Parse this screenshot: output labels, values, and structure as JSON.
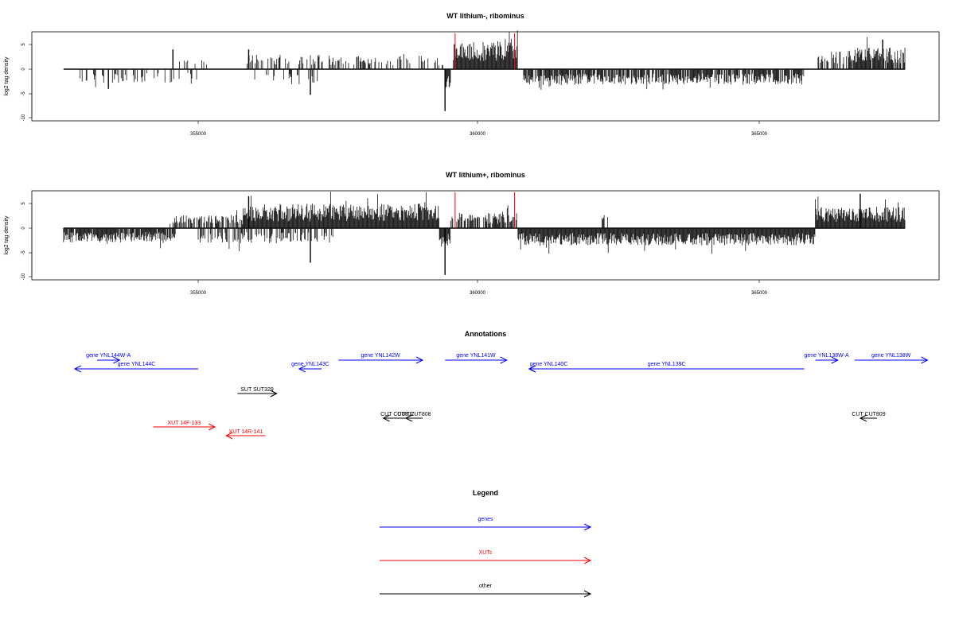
{
  "colors": {
    "gene": "#0000ff",
    "xut": "#ff0000",
    "other": "#000000",
    "highlight": "#ff0000"
  },
  "panels": [
    {
      "title": "WT lithium-, ribominus",
      "ylabel": "log2 tag density",
      "xticks": [
        355000,
        360000,
        365000
      ],
      "yticks": [
        5,
        0,
        -5,
        -10
      ],
      "xlim": [
        352000,
        368000
      ],
      "ylim": [
        -10,
        7.5
      ]
    },
    {
      "title": "WT lithium+, ribominus",
      "ylabel": "log2 tag density",
      "xticks": [
        355000,
        360000,
        365000
      ],
      "yticks": [
        5,
        0,
        -5,
        -10
      ],
      "xlim": [
        352000,
        368000
      ],
      "ylim": [
        -10,
        7.5
      ]
    }
  ],
  "annotations_title": "Annotations",
  "legend": {
    "title": "Legend",
    "items": [
      {
        "label": "genes",
        "kind": "gene"
      },
      {
        "label": "XUTs",
        "kind": "xut"
      },
      {
        "label": "other",
        "kind": "other"
      }
    ]
  },
  "chart_data": [
    {
      "type": "bar",
      "title": "WT lithium-, ribominus",
      "xlabel": "",
      "ylabel": "log2 tag density",
      "xlim": [
        352000,
        368000
      ],
      "ylim": [
        -10,
        7.5
      ],
      "baseline_range": [
        352600,
        367600
      ],
      "highlight_x": [
        359580,
        360640
      ],
      "segments": [
        {
          "from": 352800,
          "to": 355000,
          "sign": "down",
          "density": 0.18,
          "level": 2.2,
          "spike": [
            353400,
            -4
          ]
        },
        {
          "from": 354500,
          "to": 355500,
          "sign": "up",
          "density": 0.12,
          "level": 1.5,
          "spike": [
            354550,
            4
          ]
        },
        {
          "from": 355800,
          "to": 357200,
          "sign": "up",
          "density": 0.3,
          "level": 2.5,
          "spike": [
            355900,
            4
          ]
        },
        {
          "from": 355900,
          "to": 357300,
          "sign": "down",
          "density": 0.15,
          "level": 2.5,
          "spike": [
            357000,
            -5.2
          ]
        },
        {
          "from": 357200,
          "to": 359400,
          "sign": "up",
          "density": 0.35,
          "level": 2.2
        },
        {
          "from": 359400,
          "to": 359500,
          "sign": "down",
          "density": 1,
          "level": 3,
          "spike": [
            359400,
            -8.5
          ]
        },
        {
          "from": 359550,
          "to": 360700,
          "sign": "up",
          "density": 1,
          "level": 4.5
        },
        {
          "from": 360800,
          "to": 365800,
          "sign": "down",
          "density": 0.8,
          "level": 2.5
        },
        {
          "from": 366000,
          "to": 366600,
          "sign": "up",
          "density": 0.5,
          "level": 3
        },
        {
          "from": 366600,
          "to": 367600,
          "sign": "up",
          "density": 0.9,
          "level": 3.5,
          "spike": [
            367200,
            6
          ]
        }
      ]
    },
    {
      "type": "bar",
      "title": "WT lithium+, ribominus",
      "xlabel": "",
      "ylabel": "log2 tag density",
      "xlim": [
        352000,
        368000
      ],
      "ylim": [
        -10,
        7.5
      ],
      "baseline_range": [
        352600,
        367600
      ],
      "highlight_x": [
        359580,
        360640
      ],
      "segments": [
        {
          "from": 352600,
          "to": 354600,
          "sign": "down",
          "density": 0.9,
          "level": 2.3
        },
        {
          "from": 354500,
          "to": 355800,
          "sign": "up",
          "density": 0.6,
          "level": 2.2
        },
        {
          "from": 355000,
          "to": 357400,
          "sign": "down",
          "density": 0.4,
          "level": 2.5,
          "spike": [
            357000,
            -7
          ]
        },
        {
          "from": 355800,
          "to": 359300,
          "sign": "up",
          "density": 1,
          "level": 4,
          "spike": [
            355900,
            6.5
          ]
        },
        {
          "from": 359300,
          "to": 359500,
          "sign": "down",
          "density": 1,
          "level": 3,
          "spike": [
            359400,
            -9.5
          ]
        },
        {
          "from": 359500,
          "to": 360700,
          "sign": "up",
          "density": 0.7,
          "level": 2.5
        },
        {
          "from": 360700,
          "to": 366000,
          "sign": "down",
          "density": 1,
          "level": 2.8
        },
        {
          "from": 362200,
          "to": 362300,
          "sign": "up",
          "density": 0.5,
          "level": 2.5
        },
        {
          "from": 366000,
          "to": 367600,
          "sign": "up",
          "density": 1,
          "level": 3.5,
          "spike": [
            366800,
            7
          ]
        }
      ]
    },
    {
      "type": "annotation_track",
      "title": "Annotations",
      "features": [
        {
          "label": "gene YNL144W-A",
          "kind": "gene",
          "start": 353200,
          "end": 353600,
          "dir": "+",
          "row": 0
        },
        {
          "label": "gene YNL144C",
          "kind": "gene",
          "start": 352800,
          "end": 355000,
          "dir": "-",
          "row": 1
        },
        {
          "label": "gene YNL143C",
          "kind": "gene",
          "start": 356800,
          "end": 357200,
          "dir": "-",
          "row": 1
        },
        {
          "label": "gene YNL142W",
          "kind": "gene",
          "start": 357500,
          "end": 359000,
          "dir": "+",
          "row": 0
        },
        {
          "label": "gene YNL141W",
          "kind": "gene",
          "start": 359400,
          "end": 360500,
          "dir": "+",
          "row": 0
        },
        {
          "label": "gene YNL140C",
          "kind": "gene",
          "start": 360900,
          "end": 361600,
          "dir": "-",
          "row": 1
        },
        {
          "label": "gene YNL139C",
          "kind": "gene",
          "start": 360900,
          "end": 365800,
          "dir": "-",
          "row": 1
        },
        {
          "label": "gene YNL138W-A",
          "kind": "gene",
          "start": 366000,
          "end": 366400,
          "dir": "+",
          "row": 0
        },
        {
          "label": "gene YNL138W",
          "kind": "gene",
          "start": 366700,
          "end": 368000,
          "dir": "+",
          "row": 0
        },
        {
          "label": "SUT SUT329",
          "kind": "other",
          "start": 355700,
          "end": 356400,
          "dir": "+",
          "row": 2
        },
        {
          "label": "CUT CUT807",
          "kind": "other",
          "start": 358300,
          "end": 358800,
          "dir": "-",
          "row": 3
        },
        {
          "label": "CUT CUT808",
          "kind": "other",
          "start": 358700,
          "end": 359000,
          "dir": "-",
          "row": 3
        },
        {
          "label": "CUT CUT809",
          "kind": "other",
          "start": 366800,
          "end": 367100,
          "dir": "-",
          "row": 3
        },
        {
          "label": "XUT 14F-133",
          "kind": "xut",
          "start": 354200,
          "end": 355300,
          "dir": "+",
          "row": 4
        },
        {
          "label": "XUT 14R-141",
          "kind": "xut",
          "start": 355500,
          "end": 356200,
          "dir": "-",
          "row": 5
        }
      ]
    }
  ]
}
